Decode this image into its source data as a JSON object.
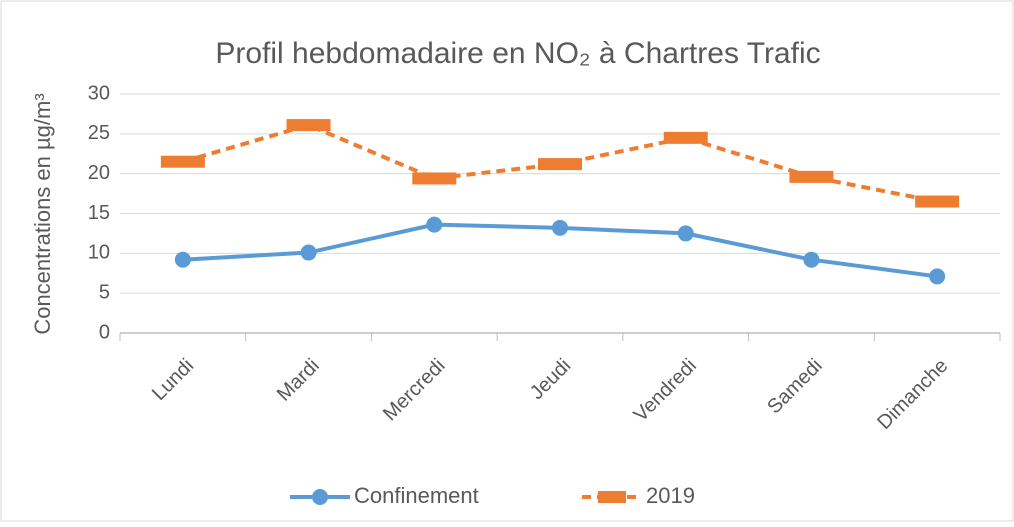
{
  "chart_data": {
    "type": "line",
    "title": "Profil hebdomadaire en NO₂ à Chartres Trafic",
    "y_label": "Concentrations en µg/m³",
    "categories": [
      "Lundi",
      "Mardi",
      "Mercredi",
      "Jeudi",
      "Vendredi",
      "Samedi",
      "Dimanche"
    ],
    "series": [
      {
        "name": "Confinement",
        "color": "#5b9bd5",
        "values": [
          9.2,
          10.1,
          13.6,
          13.2,
          12.5,
          9.2,
          7.1
        ]
      },
      {
        "name": "2019",
        "color": "#ed7d31",
        "values": [
          21.5,
          26.1,
          19.4,
          21.2,
          24.5,
          19.6,
          16.5
        ]
      }
    ],
    "ylim": [
      0,
      30
    ],
    "yticks": [
      0,
      5,
      10,
      15,
      20,
      25,
      30
    ],
    "grid": true,
    "legend": "bottom"
  }
}
